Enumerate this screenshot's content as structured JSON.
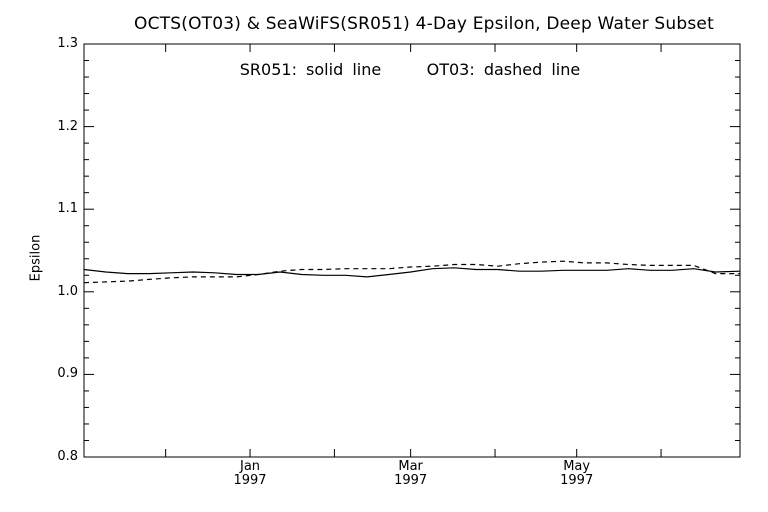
{
  "chart_data": {
    "type": "line",
    "title": "OCTS(OT03) & SeaWiFS(SR051) 4-Day Epsilon, Deep Water Subset",
    "legend_text": {
      "solid": "SR051: solid line",
      "dashed": "OT03: dashed line"
    },
    "ylabel": "Epsilon",
    "xlabel": "",
    "ylim": [
      0.8,
      1.3
    ],
    "yticks": [
      0.8,
      0.9,
      1.0,
      1.1,
      1.2,
      1.3
    ],
    "ytick_labels": [
      "0.8",
      "0.9",
      "1.0",
      "1.1",
      "1.2",
      "1.3"
    ],
    "x_range": [
      "1996-11-01",
      "1997-06-30"
    ],
    "xticks": [
      {
        "date": "1997-01-01",
        "label_top": "Jan",
        "label_bottom": "1997"
      },
      {
        "date": "1997-03-01",
        "label_top": "Mar",
        "label_bottom": "1997"
      },
      {
        "date": "1997-05-01",
        "label_top": "May",
        "label_bottom": "1997"
      }
    ],
    "minor_xticks": [
      "1996-12-01",
      "1997-01-01",
      "1997-02-01",
      "1997-03-01",
      "1997-04-01",
      "1997-05-01",
      "1997-06-01"
    ],
    "grid": false,
    "series": [
      {
        "name": "SR051",
        "style": "solid",
        "color": "#000000",
        "x": [
          "1996-11-01",
          "1996-11-09",
          "1996-11-17",
          "1996-11-25",
          "1996-12-03",
          "1996-12-11",
          "1996-12-19",
          "1996-12-27",
          "1997-01-04",
          "1997-01-12",
          "1997-01-20",
          "1997-01-28",
          "1997-02-05",
          "1997-02-13",
          "1997-02-21",
          "1997-03-01",
          "1997-03-09",
          "1997-03-17",
          "1997-03-25",
          "1997-04-02",
          "1997-04-10",
          "1997-04-18",
          "1997-04-26",
          "1997-05-04",
          "1997-05-12",
          "1997-05-20",
          "1997-05-28",
          "1997-06-05",
          "1997-06-13",
          "1997-06-21",
          "1997-06-30"
        ],
        "y": [
          1.027,
          1.024,
          1.022,
          1.022,
          1.023,
          1.024,
          1.023,
          1.021,
          1.021,
          1.024,
          1.021,
          1.02,
          1.02,
          1.018,
          1.021,
          1.024,
          1.028,
          1.029,
          1.027,
          1.027,
          1.025,
          1.025,
          1.026,
          1.026,
          1.026,
          1.028,
          1.026,
          1.026,
          1.028,
          1.024,
          1.025
        ]
      },
      {
        "name": "OT03",
        "style": "dashed",
        "color": "#000000",
        "x": [
          "1996-11-01",
          "1996-11-09",
          "1996-11-17",
          "1996-11-25",
          "1996-12-03",
          "1996-12-11",
          "1996-12-19",
          "1996-12-27",
          "1997-01-04",
          "1997-01-12",
          "1997-01-20",
          "1997-01-28",
          "1997-02-05",
          "1997-02-13",
          "1997-02-21",
          "1997-03-01",
          "1997-03-09",
          "1997-03-17",
          "1997-03-25",
          "1997-04-02",
          "1997-04-10",
          "1997-04-18",
          "1997-04-26",
          "1997-05-04",
          "1997-05-12",
          "1997-05-20",
          "1997-05-28",
          "1997-06-05",
          "1997-06-13",
          "1997-06-21",
          "1997-06-30"
        ],
        "y": [
          1.011,
          1.012,
          1.013,
          1.015,
          1.017,
          1.018,
          1.018,
          1.018,
          1.021,
          1.025,
          1.027,
          1.027,
          1.028,
          1.028,
          1.028,
          1.03,
          1.031,
          1.033,
          1.033,
          1.031,
          1.034,
          1.036,
          1.037,
          1.035,
          1.035,
          1.033,
          1.032,
          1.032,
          1.032,
          1.022,
          1.022
        ]
      }
    ]
  }
}
